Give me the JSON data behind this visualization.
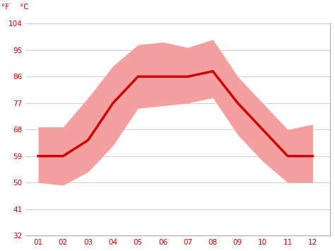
{
  "months": [
    1,
    2,
    3,
    4,
    5,
    6,
    7,
    8,
    9,
    10,
    11,
    12
  ],
  "month_labels": [
    "01",
    "02",
    "03",
    "04",
    "05",
    "06",
    "07",
    "08",
    "09",
    "10",
    "11",
    "12"
  ],
  "avg_temp_c": [
    15,
    15,
    18,
    25,
    30,
    30,
    30,
    31,
    25,
    20,
    15,
    15
  ],
  "max_temp_c": [
    20.5,
    20.5,
    26,
    32,
    36,
    36.5,
    35.5,
    37,
    30,
    25,
    20,
    21
  ],
  "min_temp_c": [
    10,
    9.5,
    12,
    17,
    24,
    24.5,
    25,
    26,
    19,
    14,
    10,
    10
  ],
  "line_color": "#cc0000",
  "band_color": "#f4a0a0",
  "background_color": "#ffffff",
  "grid_color": "#d0d0d0",
  "axis_label_color": "#cc0000",
  "ylim_c": [
    0,
    40
  ],
  "yticks_c": [
    0,
    5,
    10,
    15,
    20,
    25,
    30,
    35,
    40
  ],
  "yticks_f": [
    32,
    41,
    50,
    59,
    68,
    77,
    86,
    95,
    104
  ],
  "ylabel_left": "°F",
  "ylabel_right": "°C",
  "line_width": 2.5,
  "xlim": [
    0.5,
    12.7
  ],
  "label_fontsize": 7.5
}
